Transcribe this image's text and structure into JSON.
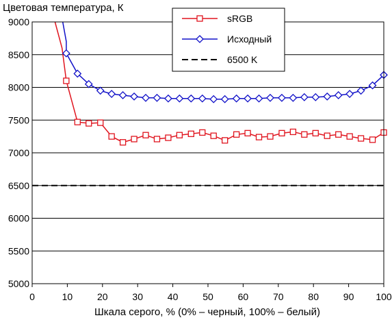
{
  "chart_data": {
    "type": "line",
    "title": "",
    "ylabel": "Цветовая температура, К",
    "xlabel": "Шкала серого, % (0% – черный, 100% – белый)",
    "xlim": [
      0,
      100
    ],
    "ylim": [
      5000,
      9000
    ],
    "xticks": [
      0,
      10,
      20,
      30,
      40,
      50,
      60,
      70,
      80,
      90,
      100
    ],
    "yticks": [
      5000,
      5500,
      6000,
      6500,
      7000,
      7500,
      8000,
      8500,
      9000
    ],
    "grid": "horizontal",
    "legend_position": "top-center",
    "series": [
      {
        "name": "sRGB",
        "color": "#e0141e",
        "marker": "square",
        "x": [
          9.7,
          12.9,
          16.1,
          19.4,
          22.6,
          25.8,
          29.0,
          32.3,
          35.5,
          38.7,
          41.9,
          45.2,
          48.4,
          51.6,
          54.8,
          58.1,
          61.3,
          64.5,
          67.7,
          71.0,
          74.2,
          77.4,
          80.6,
          83.9,
          87.1,
          90.3,
          93.5,
          96.8,
          100
        ],
        "y": [
          8100,
          7470,
          7450,
          7460,
          7250,
          7160,
          7210,
          7270,
          7210,
          7230,
          7270,
          7290,
          7310,
          7260,
          7190,
          7280,
          7300,
          7240,
          7250,
          7300,
          7320,
          7280,
          7300,
          7260,
          7280,
          7250,
          7220,
          7200,
          7310
        ],
        "lead_in": {
          "x": [
            6.5,
            8.5
          ],
          "y": [
            9000,
            8600
          ]
        }
      },
      {
        "name": "Исходный",
        "color": "#1010c8",
        "marker": "diamond",
        "x": [
          9.7,
          12.9,
          16.1,
          19.4,
          22.6,
          25.8,
          29.0,
          32.3,
          35.5,
          38.7,
          41.9,
          45.2,
          48.4,
          51.6,
          54.8,
          58.1,
          61.3,
          64.5,
          67.7,
          71.0,
          74.2,
          77.4,
          80.6,
          83.9,
          87.1,
          90.3,
          93.5,
          96.8,
          100
        ],
        "y": [
          8520,
          8210,
          8050,
          7950,
          7900,
          7880,
          7860,
          7840,
          7840,
          7830,
          7830,
          7830,
          7830,
          7820,
          7820,
          7830,
          7830,
          7830,
          7840,
          7840,
          7840,
          7850,
          7850,
          7860,
          7880,
          7900,
          7950,
          8030,
          8190
        ],
        "lead_in": {
          "x": [
            8.7,
            9.7
          ],
          "y": [
            9000,
            8700
          ]
        }
      },
      {
        "name": "6500 K",
        "color": "#000000",
        "marker": "none",
        "dashed": true,
        "x": [
          0,
          100
        ],
        "y": [
          6500,
          6500
        ]
      }
    ]
  }
}
